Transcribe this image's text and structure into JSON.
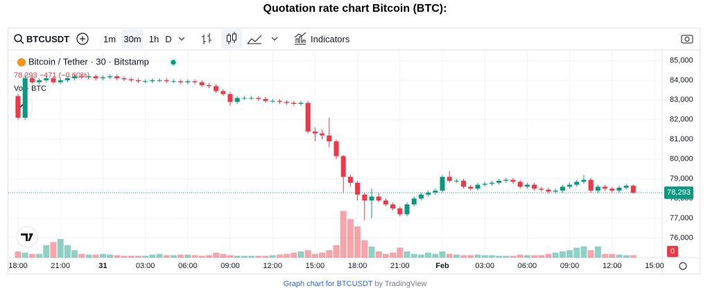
{
  "page_title": "Quotation rate chart Bitcoin (BTC):",
  "toolbar": {
    "symbol": "BTCUSDT",
    "intervals": [
      "1m",
      "30m",
      "1h",
      "D"
    ],
    "indicators": "Indicators"
  },
  "chart_data": {
    "type": "candlestick",
    "legend": {
      "title": "Bitcoin / Tether · 30 · Bitstamp",
      "quote": "78,293 −471 (−0.60%)",
      "volume": "Vol · BTC"
    },
    "up_color": "#089981",
    "down_color": "#f23645",
    "categories": [
      "18:00",
      null,
      null,
      null,
      null,
      null,
      "21:00",
      null,
      null,
      null,
      null,
      null,
      "31",
      null,
      null,
      null,
      null,
      null,
      "03:00",
      null,
      null,
      null,
      null,
      null,
      "06:00",
      null,
      null,
      null,
      null,
      null,
      "09:00",
      null,
      null,
      null,
      null,
      null,
      "12:00",
      null,
      null,
      null,
      null,
      null,
      "15:00",
      null,
      null,
      null,
      null,
      null,
      "18:00",
      null,
      null,
      null,
      null,
      null,
      "21:00",
      null,
      null,
      null,
      null,
      null,
      "Feb",
      null,
      null,
      null,
      null,
      null,
      "03:00",
      null,
      null,
      null,
      null,
      null,
      "06:00",
      null,
      null,
      null,
      null,
      null,
      "09:00",
      null,
      null,
      null,
      null,
      null,
      "12:00",
      null,
      null,
      null,
      null,
      null,
      "15:00"
    ],
    "open": [
      83200,
      82100,
      84100,
      83900,
      84000,
      84100,
      83900,
      84000,
      84100,
      84200,
      84150,
      84200,
      84100,
      84150,
      84200,
      84100,
      84050,
      84000,
      83950,
      83950,
      84000,
      84000,
      83950,
      83950,
      83900,
      83950,
      83900,
      83750,
      83700,
      83450,
      83300,
      82900,
      83100,
      83100,
      83100,
      83050,
      82950,
      82950,
      82900,
      82850,
      82800,
      82850,
      81400,
      81300,
      81200,
      80900,
      80150,
      79100,
      78800,
      78200,
      77900,
      78100,
      77900,
      77700,
      77500,
      77200,
      77700,
      78000,
      78200,
      78300,
      78400,
      79100,
      78900,
      78900,
      78600,
      78500,
      78700,
      78750,
      78800,
      78900,
      78950,
      78850,
      78600,
      78700,
      78500,
      78450,
      78350,
      78400,
      78600,
      78700,
      78850,
      78950,
      78400,
      78600,
      78500,
      78400,
      78550,
      78650,
      null,
      null,
      null
    ],
    "high": [
      83300,
      84300,
      84200,
      84100,
      84200,
      84200,
      84100,
      84200,
      84300,
      84300,
      84300,
      84300,
      84250,
      84300,
      84300,
      84200,
      84150,
      84100,
      84050,
      84100,
      84100,
      84100,
      84050,
      84050,
      84050,
      84050,
      84000,
      83850,
      83800,
      83550,
      83400,
      83200,
      83200,
      83200,
      83200,
      83150,
      83050,
      83050,
      83000,
      82950,
      82950,
      82950,
      81600,
      81500,
      82100,
      81000,
      80200,
      79200,
      78900,
      78300,
      78500,
      78300,
      78000,
      77800,
      77600,
      77800,
      78100,
      78300,
      78400,
      78500,
      79200,
      79400,
      79000,
      79000,
      78700,
      78800,
      78850,
      78900,
      79000,
      79050,
      79050,
      78950,
      78800,
      78800,
      78600,
      78550,
      78500,
      78700,
      78800,
      78950,
      79200,
      79050,
      78700,
      78700,
      78600,
      78650,
      78750,
      78700,
      null,
      null,
      null
    ],
    "low": [
      82000,
      82000,
      83800,
      83800,
      83900,
      83800,
      83800,
      83900,
      84000,
      84050,
      84050,
      84000,
      84000,
      84050,
      84000,
      83950,
      83900,
      83850,
      83850,
      83850,
      83900,
      83850,
      83850,
      83800,
      83800,
      83800,
      83650,
      83600,
      83350,
      83200,
      82700,
      82800,
      83000,
      83000,
      82950,
      82850,
      82850,
      82800,
      82750,
      82700,
      82700,
      81300,
      80900,
      81000,
      80600,
      80000,
      78300,
      78600,
      77900,
      76900,
      77000,
      77800,
      77600,
      77400,
      77100,
      77100,
      77600,
      77900,
      78100,
      78200,
      78300,
      78800,
      78800,
      78500,
      78400,
      78400,
      78600,
      78650,
      78700,
      78800,
      78750,
      78500,
      78500,
      78400,
      78350,
      78250,
      78250,
      78300,
      78500,
      78600,
      78750,
      78300,
      78300,
      78400,
      78300,
      78300,
      78450,
      78250,
      null,
      null,
      null
    ],
    "close": [
      82100,
      84100,
      83900,
      84000,
      84100,
      83900,
      84000,
      84100,
      84200,
      84150,
      84200,
      84100,
      84150,
      84200,
      84100,
      84050,
      84000,
      83950,
      83950,
      84000,
      84000,
      83950,
      83950,
      83900,
      83950,
      83900,
      83750,
      83700,
      83450,
      83300,
      82900,
      83100,
      83100,
      83100,
      83050,
      82950,
      82950,
      82900,
      82850,
      82800,
      82850,
      81400,
      81300,
      81200,
      80900,
      80150,
      79100,
      78800,
      78200,
      77900,
      78100,
      77900,
      77700,
      77500,
      77200,
      77700,
      78000,
      78200,
      78300,
      78400,
      79100,
      78900,
      78900,
      78600,
      78500,
      78700,
      78750,
      78800,
      78900,
      78950,
      78850,
      78600,
      78700,
      78500,
      78450,
      78350,
      78400,
      78600,
      78700,
      78850,
      78950,
      78400,
      78600,
      78500,
      78400,
      78550,
      78650,
      78293,
      null,
      null,
      null
    ],
    "volume": [
      10,
      8,
      6,
      6,
      20,
      25,
      30,
      20,
      12,
      6,
      5,
      5,
      6,
      5,
      4,
      3,
      3,
      3,
      3,
      5,
      6,
      4,
      4,
      5,
      5,
      4,
      3,
      4,
      8,
      6,
      4,
      3,
      3,
      3,
      3,
      3,
      4,
      5,
      6,
      8,
      10,
      12,
      6,
      8,
      12,
      20,
      75,
      62,
      50,
      28,
      18,
      10,
      6,
      8,
      16,
      10,
      6,
      5,
      8,
      6,
      10,
      6,
      5,
      4,
      4,
      5,
      4,
      4,
      3,
      3,
      3,
      5,
      4,
      4,
      4,
      6,
      8,
      10,
      12,
      16,
      18,
      12,
      18,
      6,
      6,
      5,
      4,
      4,
      null,
      null,
      null
    ],
    "ylim": [
      75000,
      85400
    ],
    "yticks": [
      {
        "value": 76000,
        "label": "76,000"
      },
      {
        "value": 77000,
        "label": "77,000"
      },
      {
        "value": 78000,
        "label": "78,000"
      },
      {
        "value": 79000,
        "label": "79,000"
      },
      {
        "value": 80000,
        "label": "80,000"
      },
      {
        "value": 81000,
        "label": "81,000"
      },
      {
        "value": 82000,
        "label": "82,000"
      },
      {
        "value": 83000,
        "label": "83,000"
      },
      {
        "value": 84000,
        "label": "84,000"
      },
      {
        "value": 85000,
        "label": "85,000"
      }
    ],
    "volume_ylim": [
      0,
      100
    ],
    "volume_yticks": [
      0
    ],
    "last_price": {
      "value": 78293,
      "label": "78,293"
    },
    "grid": true
  },
  "footer": {
    "link": "Graph chart for BTCUSDT",
    "by": "by TradingView"
  }
}
